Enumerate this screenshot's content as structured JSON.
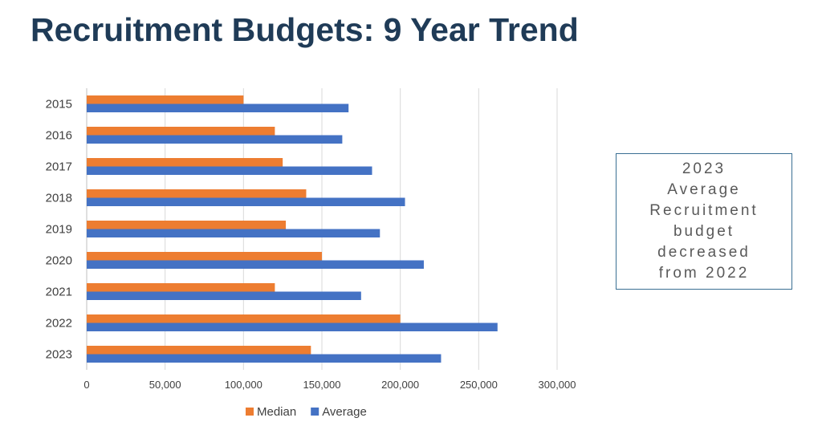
{
  "slide": {
    "title": "Recruitment Budgets: 9 Year Trend",
    "note_lines": [
      "2023",
      "Average",
      "Recruitment",
      "budget",
      "decreased",
      "from 2022"
    ]
  },
  "chart_data": {
    "type": "bar",
    "orientation": "horizontal",
    "categories": [
      "2015",
      "2016",
      "2017",
      "2018",
      "2019",
      "2020",
      "2021",
      "2022",
      "2023"
    ],
    "series": [
      {
        "name": "Median",
        "color": "#ed7d31",
        "values": [
          100000,
          120000,
          125000,
          140000,
          127000,
          150000,
          120000,
          200000,
          143000
        ]
      },
      {
        "name": "Average",
        "color": "#4472c4",
        "values": [
          167000,
          163000,
          182000,
          203000,
          187000,
          215000,
          175000,
          262000,
          226000
        ]
      }
    ],
    "xlim": [
      0,
      300000
    ],
    "xticks": [
      0,
      50000,
      100000,
      150000,
      200000,
      250000,
      300000
    ],
    "xtick_labels": [
      "0",
      "50,000",
      "100,000",
      "150,000",
      "200,000",
      "250,000",
      "300,000"
    ],
    "gridlines": "vertical",
    "legend_position": "bottom",
    "title": "",
    "xlabel": "",
    "ylabel": ""
  }
}
